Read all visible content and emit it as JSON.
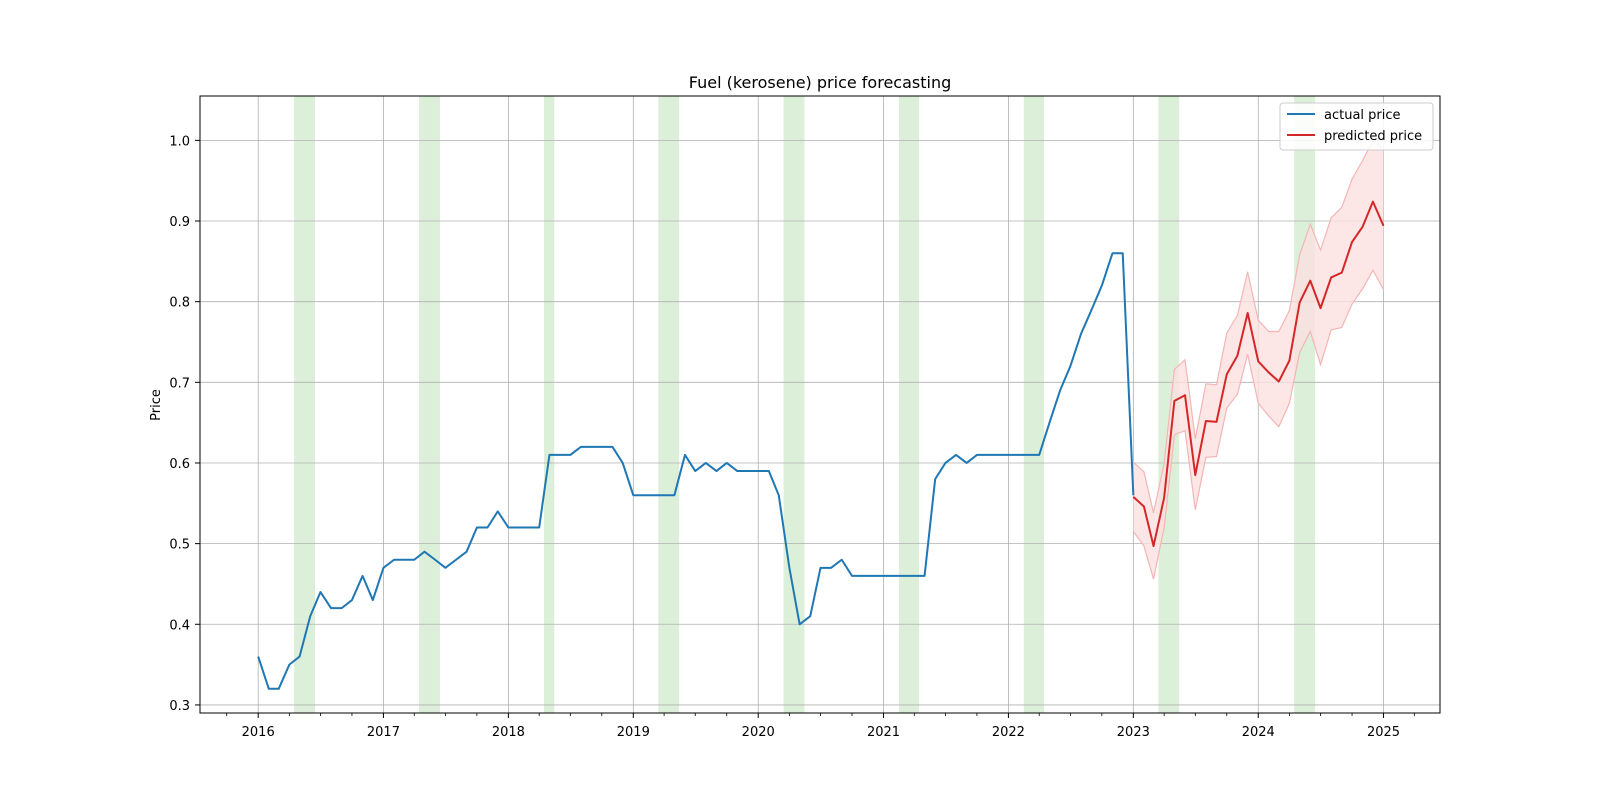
{
  "chart_data": {
    "type": "line",
    "title": "Fuel (kerosene) price forecasting",
    "xlabel": "",
    "ylabel": "Price",
    "xlim": [
      "2015-07-15",
      "2025-06-15"
    ],
    "ylim": [
      0.29,
      1.055
    ],
    "x_ticks": [
      "2016",
      "2017",
      "2018",
      "2019",
      "2020",
      "2021",
      "2022",
      "2023",
      "2024",
      "2025"
    ],
    "y_ticks": [
      "0.3",
      "0.4",
      "0.5",
      "0.6",
      "0.7",
      "0.8",
      "0.9",
      "1.0"
    ],
    "grid": true,
    "legend_position": "top-right",
    "colors": {
      "actual": "#1f77b4",
      "predicted": "#d62728",
      "interval_fill": "#fbe0e0",
      "interval_edge": "#f5b5b5",
      "highlight_band": "#dcefd9",
      "grid": "#b0b0b0"
    },
    "highlight_bands": [
      [
        "2016-04-15",
        "2016-06-15"
      ],
      [
        "2017-04-15",
        "2017-06-15"
      ],
      [
        "2018-04-15",
        "2018-05-15"
      ],
      [
        "2019-03-15",
        "2019-05-15"
      ],
      [
        "2020-03-15",
        "2020-05-15"
      ],
      [
        "2021-02-15",
        "2021-04-15"
      ],
      [
        "2022-02-15",
        "2022-04-15"
      ],
      [
        "2023-03-15",
        "2023-05-15"
      ],
      [
        "2024-04-15",
        "2024-06-15"
      ]
    ],
    "series": [
      {
        "name": "actual price",
        "x": [
          "2016-01",
          "2016-02",
          "2016-03",
          "2016-04",
          "2016-05",
          "2016-06",
          "2016-07",
          "2016-08",
          "2016-09",
          "2016-10",
          "2016-11",
          "2016-12",
          "2017-01",
          "2017-02",
          "2017-03",
          "2017-04",
          "2017-05",
          "2017-06",
          "2017-07",
          "2017-08",
          "2017-09",
          "2017-10",
          "2017-11",
          "2017-12",
          "2018-01",
          "2018-02",
          "2018-03",
          "2018-04",
          "2018-05",
          "2018-06",
          "2018-07",
          "2018-08",
          "2018-09",
          "2018-10",
          "2018-11",
          "2018-12",
          "2019-01",
          "2019-02",
          "2019-03",
          "2019-04",
          "2019-05",
          "2019-06",
          "2019-07",
          "2019-08",
          "2019-09",
          "2019-10",
          "2019-11",
          "2019-12",
          "2020-01",
          "2020-02",
          "2020-03",
          "2020-04",
          "2020-05",
          "2020-06",
          "2020-07",
          "2020-08",
          "2020-09",
          "2020-10",
          "2020-11",
          "2020-12",
          "2021-01",
          "2021-02",
          "2021-03",
          "2021-04",
          "2021-05",
          "2021-06",
          "2021-07",
          "2021-08",
          "2021-09",
          "2021-10",
          "2021-11",
          "2021-12",
          "2022-01",
          "2022-02",
          "2022-03",
          "2022-04",
          "2022-05",
          "2022-06",
          "2022-07",
          "2022-08",
          "2022-09",
          "2022-10",
          "2022-11",
          "2022-12",
          "2023-01"
        ],
        "values": [
          0.36,
          0.32,
          0.32,
          0.35,
          0.36,
          0.41,
          0.44,
          0.42,
          0.42,
          0.43,
          0.46,
          0.43,
          0.47,
          0.48,
          0.48,
          0.48,
          0.49,
          0.48,
          0.47,
          0.48,
          0.49,
          0.52,
          0.52,
          0.54,
          0.52,
          0.52,
          0.52,
          0.52,
          0.61,
          0.61,
          0.61,
          0.62,
          0.62,
          0.62,
          0.62,
          0.6,
          0.56,
          0.56,
          0.56,
          0.56,
          0.56,
          0.61,
          0.59,
          0.6,
          0.59,
          0.6,
          0.59,
          0.59,
          0.59,
          0.59,
          0.56,
          0.47,
          0.4,
          0.41,
          0.47,
          0.47,
          0.48,
          0.46,
          0.46,
          0.46,
          0.46,
          0.46,
          0.46,
          0.46,
          0.46,
          0.58,
          0.6,
          0.61,
          0.6,
          0.61,
          0.61,
          0.61,
          0.61,
          0.61,
          0.61,
          0.61,
          0.65,
          0.69,
          0.72,
          0.76,
          0.79,
          0.82,
          0.86,
          0.86,
          0.56
        ]
      },
      {
        "name": "predicted price",
        "x": [
          "2023-01",
          "2023-02",
          "2023-03",
          "2023-04",
          "2023-05",
          "2023-06",
          "2023-07",
          "2023-08",
          "2023-09",
          "2023-10",
          "2023-11",
          "2023-12",
          "2024-01",
          "2024-02",
          "2024-03",
          "2024-04",
          "2024-05",
          "2024-06",
          "2024-07",
          "2024-08",
          "2024-09",
          "2024-10",
          "2024-11",
          "2024-12",
          "2025-01"
        ],
        "values": [
          0.558,
          0.546,
          0.497,
          0.557,
          0.677,
          0.684,
          0.585,
          0.652,
          0.651,
          0.71,
          0.733,
          0.786,
          0.726,
          0.712,
          0.701,
          0.727,
          0.799,
          0.826,
          0.792,
          0.83,
          0.836,
          0.874,
          0.893,
          0.924,
          0.894
        ],
        "lower": [
          0.515,
          0.497,
          0.456,
          0.52,
          0.635,
          0.64,
          0.542,
          0.607,
          0.608,
          0.668,
          0.685,
          0.735,
          0.674,
          0.658,
          0.645,
          0.674,
          0.737,
          0.763,
          0.722,
          0.765,
          0.768,
          0.797,
          0.816,
          0.839,
          0.815
        ],
        "upper": [
          0.601,
          0.589,
          0.538,
          0.6,
          0.716,
          0.728,
          0.63,
          0.698,
          0.697,
          0.761,
          0.783,
          0.837,
          0.777,
          0.763,
          0.763,
          0.789,
          0.858,
          0.896,
          0.864,
          0.904,
          0.917,
          0.952,
          0.975,
          1.0,
          0.99
        ]
      }
    ]
  }
}
